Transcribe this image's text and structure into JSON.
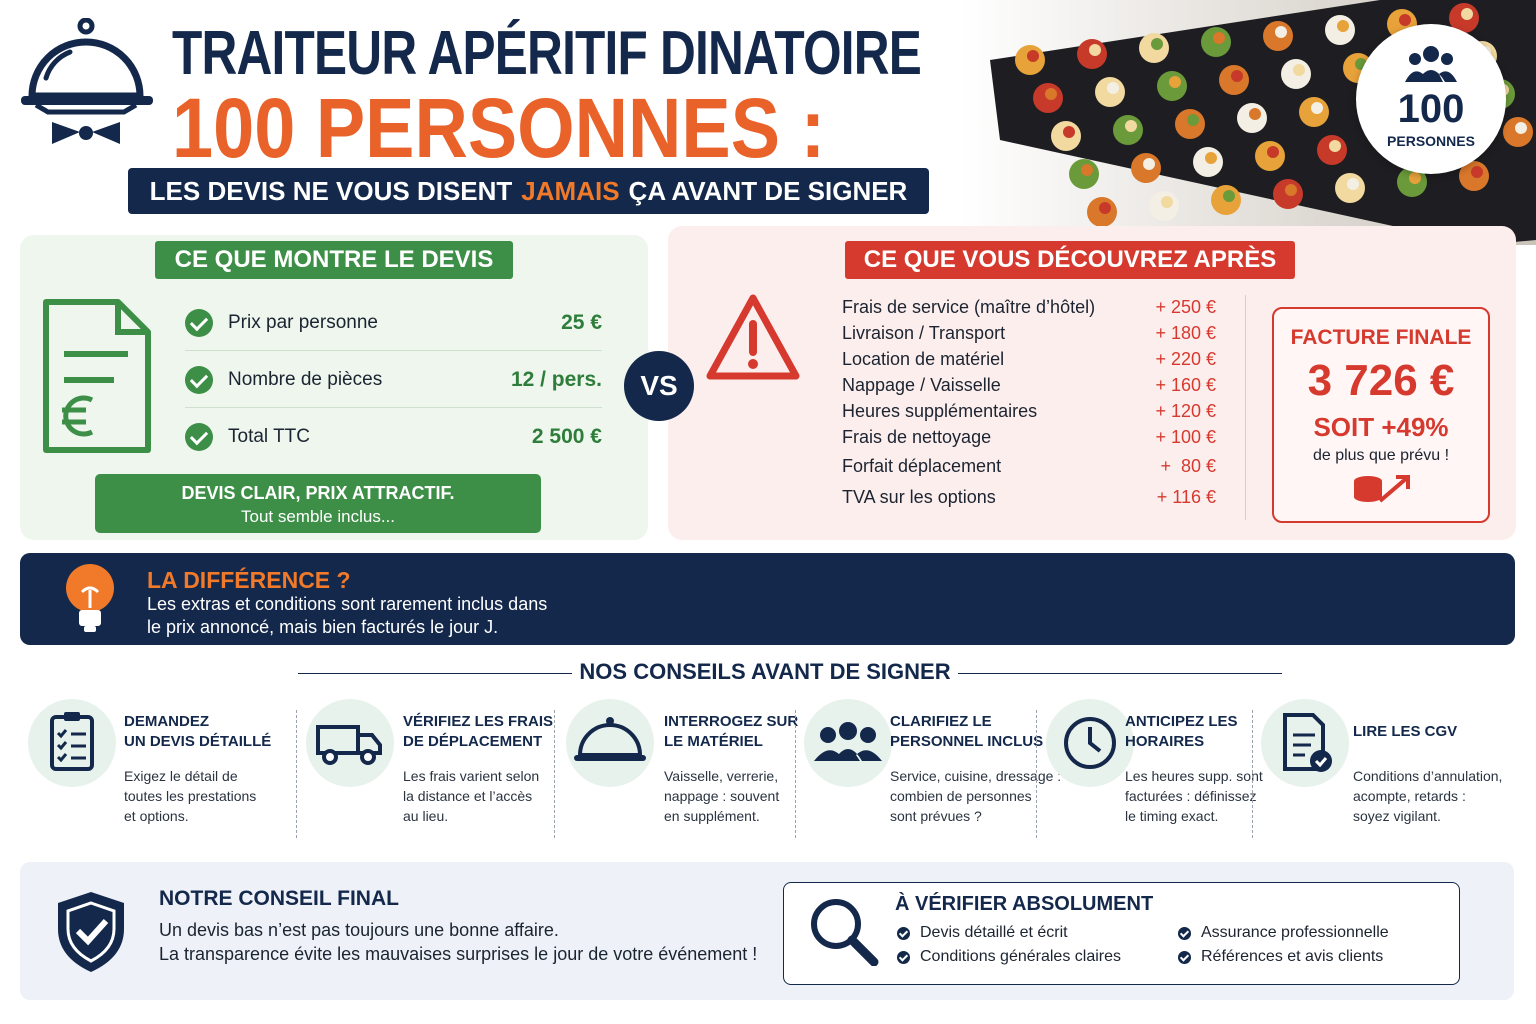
{
  "header": {
    "title_line1": "TRAITEUR APÉRITIF DINATOIRE",
    "title_line2": "100 PERSONNES :",
    "subtitle": {
      "before": "LES DEVIS NE VOUS DISENT",
      "highlight": "JAMAIS",
      "after": "ÇA AVANT DE SIGNER"
    }
  },
  "badge": {
    "number": "100",
    "label": "PERSONNES"
  },
  "devis": {
    "heading": "CE QUE MONTRE LE DEVIS",
    "rows": [
      {
        "label": "Prix par personne",
        "value": "25 €"
      },
      {
        "label": "Nombre de pièces",
        "value": "12 / pers."
      },
      {
        "label": "Total TTC",
        "value": "2 500 €"
      }
    ],
    "note_line1": "DEVIS CLAIR, PRIX ATTRACTIF.",
    "note_line2": "Tout semble inclus..."
  },
  "vs": "VS",
  "apres": {
    "heading": "CE QUE VOUS DÉCOUVREZ APRÈS",
    "items": [
      {
        "label": "Frais de service (maître d’hôtel)",
        "value": "+ 250 €"
      },
      {
        "label": "Livraison / Transport",
        "value": "+ 180 €"
      },
      {
        "label": "Location de matériel",
        "value": "+ 220 €"
      },
      {
        "label": "Nappage / Vaisselle",
        "value": "+ 160 €"
      },
      {
        "label": "Heures supplémentaires",
        "value": "+ 120 €"
      },
      {
        "label": "Frais de nettoyage",
        "value": "+ 100 €"
      },
      {
        "label": "Forfait déplacement",
        "value": "+  80 €"
      },
      {
        "label": "TVA sur les options",
        "value": "+ 116 €"
      }
    ],
    "final": {
      "title": "FACTURE FINALE",
      "amount": "3 726 €",
      "percent": "SOIT +49%",
      "note": "de plus que prévu !"
    }
  },
  "difference": {
    "title": "LA DIFFÉRENCE ?",
    "line1": "Les extras et conditions sont rarement inclus dans",
    "line2": "le prix annoncé, mais bien facturés le jour J."
  },
  "conseils": {
    "heading": "NOS CONSEILS AVANT DE SIGNER",
    "items": [
      {
        "title": [
          "DEMANDEZ",
          "UN DEVIS DÉTAILLÉ"
        ],
        "text": [
          "Exigez le détail de",
          "toutes les prestations",
          "et options."
        ]
      },
      {
        "title": [
          "VÉRIFIEZ LES FRAIS",
          "DE DÉPLACEMENT"
        ],
        "text": [
          "Les frais varient selon",
          "la distance et l’accès",
          "au lieu."
        ]
      },
      {
        "title": [
          "INTERROGEZ SUR",
          "LE MATÉRIEL"
        ],
        "text": [
          "Vaisselle, verrerie,",
          "nappage : souvent",
          "en supplément."
        ]
      },
      {
        "title": [
          "CLARIFIEZ LE",
          "PERSONNEL INCLUS"
        ],
        "text": [
          "Service, cuisine, dressage :",
          "combien de personnes",
          "sont prévues ?"
        ]
      },
      {
        "title": [
          "ANTICIPEZ LES",
          "HORAIRES"
        ],
        "text": [
          "Les heures supp. sont",
          "facturées : définissez",
          "le timing exact."
        ]
      },
      {
        "title": [
          "LIRE LES CGV"
        ],
        "text": [
          "Conditions d’annulation,",
          "acompte, retards :",
          "soyez vigilant."
        ]
      }
    ]
  },
  "final": {
    "title": "NOTRE CONSEIL FINAL",
    "lines": [
      "Un devis bas n’est pas toujours une bonne affaire.",
      "La transparence évite les mauvaises surprises le jour de votre événement !"
    ]
  },
  "verifier": {
    "title": "À VÉRIFIER ABSOLUMENT",
    "items": [
      "Devis détaillé et écrit",
      "Conditions générales claires",
      "Assurance professionnelle",
      "Références et avis clients"
    ]
  }
}
